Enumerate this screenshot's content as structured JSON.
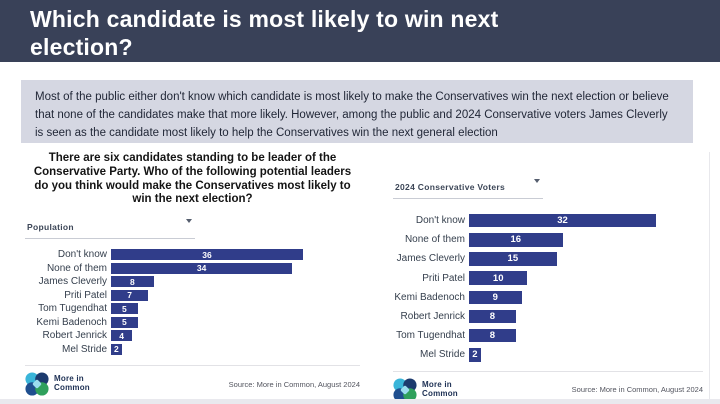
{
  "header": {
    "title": "Which candidate is most likely to win next election?"
  },
  "summary": "Most of the public either don't know which candidate is most likely to make the Conservatives win the next election or believe that none of the candidates make that more likely. However, among the public and 2024 Conservative voters James Cleverly is seen as the candidate most likely to help the Conservatives win the next general election",
  "colors": {
    "header_bg": "#394158",
    "summary_bg": "#d5d7e2",
    "bar": "#303d8a",
    "logo_navy": "#1d3054"
  },
  "chart_data": [
    {
      "type": "bar",
      "orientation": "horizontal",
      "panel": "left",
      "title": "There are six candidates standing to be leader of the Conservative Party. Who of the following potential leaders do you think would make the Conservatives most likely to win the next election?",
      "filter_dropdown": "Population",
      "categories": [
        "Don't know",
        "None of them",
        "James Cleverly",
        "Priti Patel",
        "Tom Tugendhat",
        "Kemi Badenoch",
        "Robert Jenrick",
        "Mel Stride"
      ],
      "values": [
        36,
        34,
        8,
        7,
        5,
        5,
        4,
        2
      ],
      "xlim": [
        0,
        36
      ],
      "value_labels": "white, bold, centered inside bars",
      "source": "Source: More in Common, August 2024"
    },
    {
      "type": "bar",
      "orientation": "horizontal",
      "panel": "right",
      "title": "",
      "filter_dropdown": "2024 Conservative Voters",
      "categories": [
        "Don't know",
        "None of them",
        "James Cleverly",
        "Priti Patel",
        "Kemi Badenoch",
        "Robert Jenrick",
        "Tom Tugendhat",
        "Mel Stride"
      ],
      "values": [
        32,
        16,
        15,
        10,
        9,
        8,
        8,
        2
      ],
      "xlim": [
        0,
        32
      ],
      "value_labels": "white, bold, centered inside bars",
      "source": "Source: More in Common, August 2024"
    }
  ],
  "branding": {
    "logo_icon": "more-in-common-clover-logo",
    "logo_line1": "More in",
    "logo_line2": "Common"
  }
}
